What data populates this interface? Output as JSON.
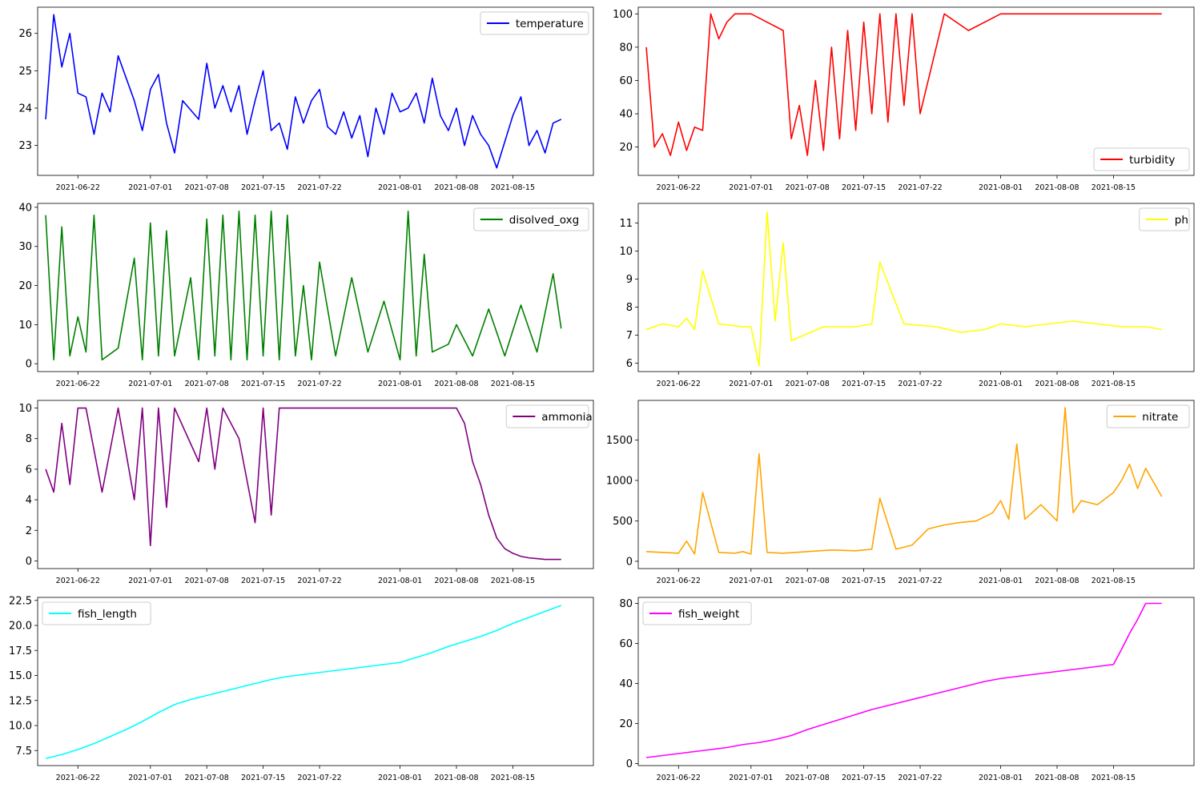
{
  "chart_data": [
    {
      "type": "line",
      "name": "temperature",
      "color": "#0000ff",
      "legend": "upper right",
      "x_ticks": [
        "2021-06-22",
        "2021-07-01",
        "2021-07-08",
        "2021-07-15",
        "2021-07-22",
        "2021-08-01",
        "2021-08-08",
        "2021-08-15"
      ],
      "y_ticks": [
        "23",
        "24",
        "25",
        "26"
      ],
      "xlim": [
        "2021-06-17",
        "2021-08-25"
      ],
      "ylim": [
        22.2,
        26.7
      ],
      "series": [
        {
          "name": "temperature",
          "x": [
            "2021-06-18",
            "2021-06-19",
            "2021-06-20",
            "2021-06-21",
            "2021-06-22",
            "2021-06-23",
            "2021-06-24",
            "2021-06-25",
            "2021-06-26",
            "2021-06-27",
            "2021-06-28",
            "2021-06-29",
            "2021-06-30",
            "2021-07-01",
            "2021-07-02",
            "2021-07-03",
            "2021-07-04",
            "2021-07-05",
            "2021-07-07",
            "2021-07-08",
            "2021-07-09",
            "2021-07-10",
            "2021-07-11",
            "2021-07-12",
            "2021-07-13",
            "2021-07-14",
            "2021-07-15",
            "2021-07-16",
            "2021-07-17",
            "2021-07-18",
            "2021-07-19",
            "2021-07-20",
            "2021-07-21",
            "2021-07-22",
            "2021-07-23",
            "2021-07-24",
            "2021-07-25",
            "2021-07-26",
            "2021-07-27",
            "2021-07-28",
            "2021-07-29",
            "2021-07-30",
            "2021-07-31",
            "2021-08-01",
            "2021-08-02",
            "2021-08-03",
            "2021-08-04",
            "2021-08-05",
            "2021-08-06",
            "2021-08-07",
            "2021-08-08",
            "2021-08-09",
            "2021-08-10",
            "2021-08-11",
            "2021-08-12",
            "2021-08-13",
            "2021-08-14",
            "2021-08-15",
            "2021-08-16",
            "2021-08-17",
            "2021-08-18",
            "2021-08-19",
            "2021-08-20",
            "2021-08-21"
          ],
          "values": [
            23.7,
            26.5,
            25.1,
            26.0,
            24.4,
            24.3,
            23.3,
            24.4,
            23.9,
            25.4,
            24.8,
            24.2,
            23.4,
            24.5,
            24.9,
            23.6,
            22.8,
            24.2,
            23.7,
            25.2,
            24.0,
            24.6,
            23.9,
            24.6,
            23.3,
            24.2,
            25.0,
            23.4,
            23.6,
            22.9,
            24.3,
            23.6,
            24.2,
            24.5,
            23.5,
            23.3,
            23.9,
            23.2,
            23.8,
            22.7,
            24.0,
            23.3,
            24.4,
            23.9,
            24.0,
            24.4,
            23.6,
            24.8,
            23.8,
            23.4,
            24.0,
            23.0,
            23.8,
            23.3,
            23.0,
            22.4,
            23.1,
            23.8,
            24.3,
            23.0,
            23.4,
            22.8,
            23.6,
            23.7
          ]
        }
      ]
    },
    {
      "type": "line",
      "name": "turbidity",
      "color": "#ff0000",
      "legend": "lower right",
      "x_ticks": [
        "2021-06-22",
        "2021-07-01",
        "2021-07-08",
        "2021-07-15",
        "2021-07-22",
        "2021-08-01",
        "2021-08-08",
        "2021-08-15"
      ],
      "y_ticks": [
        "20",
        "40",
        "60",
        "80",
        "100"
      ],
      "xlim": [
        "2021-06-17",
        "2021-08-25"
      ],
      "ylim": [
        3,
        104
      ],
      "series": [
        {
          "name": "turbidity",
          "x": [
            "2021-06-18",
            "2021-06-19",
            "2021-06-20",
            "2021-06-21",
            "2021-06-22",
            "2021-06-23",
            "2021-06-24",
            "2021-06-25",
            "2021-06-26",
            "2021-06-27",
            "2021-06-28",
            "2021-06-29",
            "2021-06-30",
            "2021-07-01",
            "2021-07-03",
            "2021-07-05",
            "2021-07-06",
            "2021-07-07",
            "2021-07-08",
            "2021-07-09",
            "2021-07-10",
            "2021-07-11",
            "2021-07-12",
            "2021-07-13",
            "2021-07-14",
            "2021-07-15",
            "2021-07-16",
            "2021-07-17",
            "2021-07-18",
            "2021-07-19",
            "2021-07-20",
            "2021-07-21",
            "2021-07-22",
            "2021-07-25",
            "2021-07-28",
            "2021-08-01",
            "2021-08-10",
            "2021-08-21"
          ],
          "values": [
            80,
            20,
            28,
            15,
            35,
            18,
            32,
            30,
            100,
            85,
            95,
            100,
            100,
            100,
            95,
            90,
            25,
            45,
            15,
            60,
            18,
            80,
            25,
            90,
            30,
            95,
            40,
            100,
            35,
            100,
            45,
            100,
            40,
            100,
            90,
            100,
            100,
            100
          ]
        }
      ]
    },
    {
      "type": "line",
      "name": "disolved_oxg",
      "color": "#008000",
      "legend": "upper right",
      "x_ticks": [
        "2021-06-22",
        "2021-07-01",
        "2021-07-08",
        "2021-07-15",
        "2021-07-22",
        "2021-08-01",
        "2021-08-08",
        "2021-08-15"
      ],
      "y_ticks": [
        "0",
        "10",
        "20",
        "30",
        "40"
      ],
      "xlim": [
        "2021-06-17",
        "2021-08-25"
      ],
      "ylim": [
        -2,
        41
      ],
      "series": [
        {
          "name": "disolved_oxg",
          "x": [
            "2021-06-18",
            "2021-06-19",
            "2021-06-20",
            "2021-06-21",
            "2021-06-22",
            "2021-06-23",
            "2021-06-24",
            "2021-06-25",
            "2021-06-27",
            "2021-06-29",
            "2021-06-30",
            "2021-07-01",
            "2021-07-02",
            "2021-07-03",
            "2021-07-04",
            "2021-07-06",
            "2021-07-07",
            "2021-07-08",
            "2021-07-09",
            "2021-07-10",
            "2021-07-11",
            "2021-07-12",
            "2021-07-13",
            "2021-07-14",
            "2021-07-15",
            "2021-07-16",
            "2021-07-17",
            "2021-07-18",
            "2021-07-19",
            "2021-07-20",
            "2021-07-21",
            "2021-07-22",
            "2021-07-24",
            "2021-07-26",
            "2021-07-28",
            "2021-07-30",
            "2021-08-01",
            "2021-08-02",
            "2021-08-03",
            "2021-08-04",
            "2021-08-05",
            "2021-08-07",
            "2021-08-08",
            "2021-08-10",
            "2021-08-12",
            "2021-08-14",
            "2021-08-16",
            "2021-08-18",
            "2021-08-20",
            "2021-08-21"
          ],
          "values": [
            38,
            1,
            35,
            2,
            12,
            3,
            38,
            1,
            4,
            27,
            1,
            36,
            2,
            34,
            2,
            22,
            1,
            37,
            2,
            38,
            1,
            39,
            1,
            38,
            2,
            39,
            1,
            38,
            2,
            20,
            1,
            26,
            2,
            22,
            3,
            16,
            1,
            39,
            2,
            28,
            3,
            5,
            10,
            2,
            14,
            2,
            15,
            3,
            23,
            9
          ]
        }
      ]
    },
    {
      "type": "line",
      "name": "ph",
      "color": "#ffff00",
      "legend": "upper right",
      "x_ticks": [
        "2021-06-22",
        "2021-07-01",
        "2021-07-08",
        "2021-07-15",
        "2021-07-22",
        "2021-08-01",
        "2021-08-08",
        "2021-08-15"
      ],
      "y_ticks": [
        "6",
        "7",
        "8",
        "9",
        "10",
        "11"
      ],
      "xlim": [
        "2021-06-17",
        "2021-08-25"
      ],
      "ylim": [
        5.7,
        11.7
      ],
      "series": [
        {
          "name": "ph",
          "x": [
            "2021-06-18",
            "2021-06-20",
            "2021-06-22",
            "2021-06-23",
            "2021-06-24",
            "2021-06-25",
            "2021-06-27",
            "2021-06-30",
            "2021-07-01",
            "2021-07-02",
            "2021-07-03",
            "2021-07-04",
            "2021-07-05",
            "2021-07-06",
            "2021-07-10",
            "2021-07-14",
            "2021-07-16",
            "2021-07-17",
            "2021-07-20",
            "2021-07-24",
            "2021-07-27",
            "2021-07-30",
            "2021-08-01",
            "2021-08-04",
            "2021-08-07",
            "2021-08-10",
            "2021-08-13",
            "2021-08-16",
            "2021-08-19",
            "2021-08-21"
          ],
          "values": [
            7.2,
            7.4,
            7.3,
            7.6,
            7.2,
            9.3,
            7.4,
            7.3,
            7.3,
            5.9,
            11.4,
            7.5,
            10.3,
            6.8,
            7.3,
            7.3,
            7.4,
            9.6,
            7.4,
            7.3,
            7.1,
            7.2,
            7.4,
            7.3,
            7.4,
            7.5,
            7.4,
            7.3,
            7.3,
            7.2
          ]
        }
      ]
    },
    {
      "type": "line",
      "name": "ammonia",
      "color": "#800080",
      "legend": "upper right",
      "x_ticks": [
        "2021-06-22",
        "2021-07-01",
        "2021-07-08",
        "2021-07-15",
        "2021-07-22",
        "2021-08-01",
        "2021-08-08",
        "2021-08-15"
      ],
      "y_ticks": [
        "0",
        "2",
        "4",
        "6",
        "8",
        "10"
      ],
      "xlim": [
        "2021-06-17",
        "2021-08-25"
      ],
      "ylim": [
        -0.5,
        10.5
      ],
      "series": [
        {
          "name": "ammonia",
          "x": [
            "2021-06-18",
            "2021-06-19",
            "2021-06-20",
            "2021-06-21",
            "2021-06-22",
            "2021-06-23",
            "2021-06-25",
            "2021-06-27",
            "2021-06-29",
            "2021-06-30",
            "2021-07-01",
            "2021-07-02",
            "2021-07-03",
            "2021-07-04",
            "2021-07-07",
            "2021-07-08",
            "2021-07-09",
            "2021-07-10",
            "2021-07-12",
            "2021-07-14",
            "2021-07-15",
            "2021-07-16",
            "2021-07-17",
            "2021-07-19",
            "2021-07-21",
            "2021-07-25",
            "2021-08-01",
            "2021-08-03",
            "2021-08-05",
            "2021-08-08",
            "2021-08-09",
            "2021-08-10",
            "2021-08-11",
            "2021-08-12",
            "2021-08-13",
            "2021-08-14",
            "2021-08-15",
            "2021-08-16",
            "2021-08-17",
            "2021-08-18",
            "2021-08-19",
            "2021-08-21"
          ],
          "values": [
            6.0,
            4.5,
            9.0,
            5.0,
            10.0,
            10.0,
            4.5,
            10.0,
            4.0,
            10.0,
            1.0,
            10.0,
            3.5,
            10.0,
            6.5,
            10.0,
            6.0,
            10.0,
            8.0,
            2.5,
            10.0,
            3.0,
            10.0,
            10.0,
            10.0,
            10.0,
            10.0,
            10.0,
            10.0,
            10.0,
            9.0,
            6.5,
            5.0,
            3.0,
            1.5,
            0.8,
            0.5,
            0.3,
            0.2,
            0.15,
            0.1,
            0.1
          ]
        }
      ]
    },
    {
      "type": "line",
      "name": "nitrate",
      "color": "#ffa500",
      "legend": "upper right",
      "x_ticks": [
        "2021-06-22",
        "2021-07-01",
        "2021-07-08",
        "2021-07-15",
        "2021-07-22",
        "2021-08-01",
        "2021-08-08",
        "2021-08-15"
      ],
      "y_ticks": [
        "0",
        "500",
        "1000",
        "1500"
      ],
      "xlim": [
        "2021-06-17",
        "2021-08-25"
      ],
      "ylim": [
        -90,
        1990
      ],
      "series": [
        {
          "name": "nitrate",
          "x": [
            "2021-06-18",
            "2021-06-20",
            "2021-06-22",
            "2021-06-23",
            "2021-06-24",
            "2021-06-25",
            "2021-06-27",
            "2021-06-29",
            "2021-06-30",
            "2021-07-01",
            "2021-07-02",
            "2021-07-03",
            "2021-07-05",
            "2021-07-08",
            "2021-07-11",
            "2021-07-14",
            "2021-07-16",
            "2021-07-17",
            "2021-07-19",
            "2021-07-21",
            "2021-07-23",
            "2021-07-25",
            "2021-07-27",
            "2021-07-29",
            "2021-07-31",
            "2021-08-01",
            "2021-08-02",
            "2021-08-03",
            "2021-08-04",
            "2021-08-06",
            "2021-08-08",
            "2021-08-09",
            "2021-08-10",
            "2021-08-11",
            "2021-08-13",
            "2021-08-15",
            "2021-08-16",
            "2021-08-17",
            "2021-08-18",
            "2021-08-19",
            "2021-08-21"
          ],
          "values": [
            120,
            110,
            100,
            250,
            90,
            850,
            110,
            100,
            120,
            90,
            1330,
            110,
            100,
            120,
            140,
            130,
            150,
            780,
            150,
            200,
            400,
            450,
            480,
            500,
            600,
            750,
            520,
            1450,
            520,
            700,
            500,
            1900,
            600,
            750,
            700,
            850,
            1000,
            1200,
            900,
            1150,
            800
          ]
        }
      ]
    },
    {
      "type": "line",
      "name": "fish_length",
      "color": "#00ffff",
      "legend": "upper left",
      "x_ticks": [
        "2021-06-22",
        "2021-07-01",
        "2021-07-08",
        "2021-07-15",
        "2021-07-22",
        "2021-08-01",
        "2021-08-08",
        "2021-08-15"
      ],
      "y_ticks": [
        "7.5",
        "10.0",
        "12.5",
        "15.0",
        "17.5",
        "20.0",
        "22.5"
      ],
      "xlim": [
        "2021-06-17",
        "2021-08-25"
      ],
      "ylim": [
        6.0,
        22.8
      ],
      "series": [
        {
          "name": "fish_length",
          "x": [
            "2021-06-18",
            "2021-06-20",
            "2021-06-22",
            "2021-06-24",
            "2021-06-26",
            "2021-06-28",
            "2021-06-30",
            "2021-07-02",
            "2021-07-04",
            "2021-07-06",
            "2021-07-08",
            "2021-07-10",
            "2021-07-12",
            "2021-07-14",
            "2021-07-16",
            "2021-07-18",
            "2021-07-20",
            "2021-07-22",
            "2021-07-24",
            "2021-07-26",
            "2021-07-28",
            "2021-07-30",
            "2021-08-01",
            "2021-08-03",
            "2021-08-05",
            "2021-08-07",
            "2021-08-09",
            "2021-08-11",
            "2021-08-13",
            "2021-08-15",
            "2021-08-17",
            "2021-08-19",
            "2021-08-21"
          ],
          "values": [
            6.7,
            7.1,
            7.6,
            8.2,
            8.9,
            9.6,
            10.4,
            11.3,
            12.1,
            12.6,
            13.0,
            13.4,
            13.8,
            14.2,
            14.6,
            14.9,
            15.1,
            15.3,
            15.5,
            15.7,
            15.9,
            16.1,
            16.3,
            16.8,
            17.3,
            17.9,
            18.4,
            18.9,
            19.5,
            20.2,
            20.8,
            21.4,
            22.0
          ]
        }
      ]
    },
    {
      "type": "line",
      "name": "fish_weight",
      "color": "#ff00ff",
      "legend": "upper left",
      "x_ticks": [
        "2021-06-22",
        "2021-07-01",
        "2021-07-08",
        "2021-07-15",
        "2021-07-22",
        "2021-08-01",
        "2021-08-08",
        "2021-08-15"
      ],
      "y_ticks": [
        "0",
        "20",
        "40",
        "60",
        "80"
      ],
      "xlim": [
        "2021-06-17",
        "2021-08-25"
      ],
      "ylim": [
        -1,
        83
      ],
      "series": [
        {
          "name": "fish_weight",
          "x": [
            "2021-06-18",
            "2021-06-20",
            "2021-06-22",
            "2021-06-24",
            "2021-06-26",
            "2021-06-28",
            "2021-06-30",
            "2021-07-02",
            "2021-07-04",
            "2021-07-06",
            "2021-07-08",
            "2021-07-10",
            "2021-07-12",
            "2021-07-14",
            "2021-07-16",
            "2021-07-18",
            "2021-07-20",
            "2021-07-22",
            "2021-07-24",
            "2021-07-26",
            "2021-07-28",
            "2021-07-30",
            "2021-08-01",
            "2021-08-03",
            "2021-08-05",
            "2021-08-07",
            "2021-08-09",
            "2021-08-11",
            "2021-08-13",
            "2021-08-15",
            "2021-08-16",
            "2021-08-17",
            "2021-08-18",
            "2021-08-19",
            "2021-08-21"
          ],
          "values": [
            3.0,
            4.0,
            5.0,
            6.0,
            7.0,
            8.0,
            9.5,
            10.5,
            12.0,
            14.0,
            17.0,
            19.5,
            22.0,
            24.5,
            27.0,
            29.0,
            31.0,
            33.0,
            35.0,
            37.0,
            39.0,
            41.0,
            42.5,
            43.5,
            44.5,
            45.5,
            46.5,
            47.5,
            48.5,
            49.5,
            57.0,
            65.0,
            72.0,
            80.0,
            80.0
          ]
        }
      ]
    }
  ]
}
